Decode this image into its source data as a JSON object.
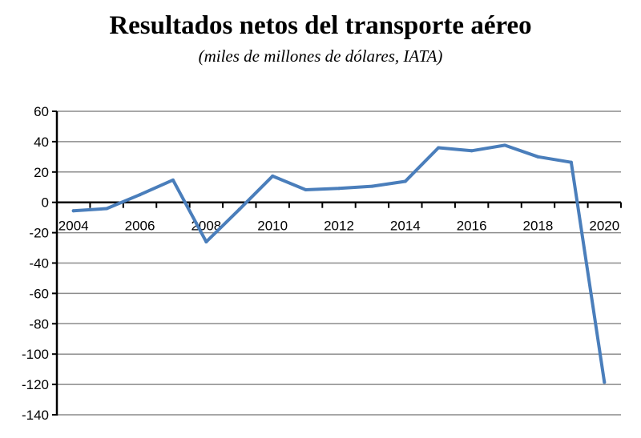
{
  "chart_data": {
    "type": "line",
    "title": "Resultados netos del transporte aéreo",
    "subtitle": "(miles de millones de dólares, IATA)",
    "xlabel": "",
    "ylabel": "",
    "x": [
      2004,
      2005,
      2006,
      2007,
      2008,
      2009,
      2010,
      2011,
      2012,
      2013,
      2014,
      2015,
      2016,
      2017,
      2018,
      2019,
      2020
    ],
    "series": [
      {
        "name": "Resultados netos",
        "color": "#4a7ebb",
        "values": [
          -5.6,
          -4.1,
          5.0,
          14.7,
          -26.0,
          -4.6,
          17.3,
          8.3,
          9.2,
          10.6,
          13.8,
          36.0,
          34.0,
          37.6,
          30.0,
          26.4,
          -118.5
        ]
      }
    ],
    "ylim": [
      -140,
      60
    ],
    "yticks": [
      60,
      40,
      20,
      0,
      -20,
      -40,
      -60,
      -80,
      -100,
      -120,
      -140
    ],
    "xtick_labels": [
      "2004",
      "2006",
      "2008",
      "2010",
      "2012",
      "2014",
      "2016",
      "2018",
      "2020"
    ],
    "grid": true,
    "legend": "none"
  }
}
